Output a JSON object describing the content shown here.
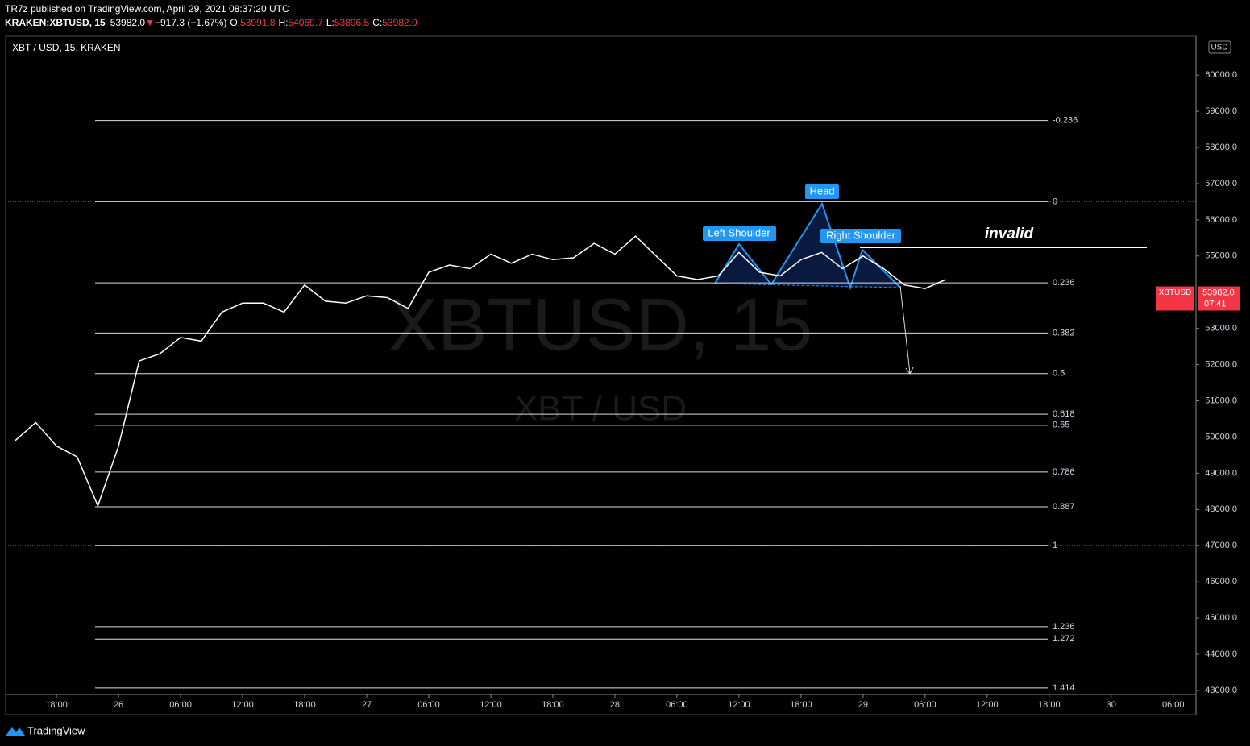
{
  "header": {
    "published": "TR7z published on TradingView.com, April 29, 2021 08:37:20 UTC",
    "symbol": "KRAKEN:XBTUSD, 15",
    "last": "53982.0",
    "arrow": "▼",
    "change": "−917.3 (−1.67%)",
    "ohlc": [
      {
        "label": "O:",
        "value": "53991.8"
      },
      {
        "label": "H:",
        "value": "54069.7"
      },
      {
        "label": "L:",
        "value": "53896.5"
      },
      {
        "label": "C:",
        "value": "53982.0"
      }
    ]
  },
  "chart_data": {
    "type": "line",
    "title": "XBT / USD, 15, KRAKEN",
    "watermark": "XBTUSD, 15",
    "watermark_sub": "XBT / USD",
    "currency": "USD",
    "brand": "TradingView",
    "x": [
      "2021-04-25T14:00",
      "2021-04-25T16:00",
      "2021-04-25T18:00",
      "2021-04-25T20:00",
      "2021-04-25T22:00",
      "2021-04-26T00:00",
      "2021-04-26T02:00",
      "2021-04-26T04:00",
      "2021-04-26T06:00",
      "2021-04-26T08:00",
      "2021-04-26T10:00",
      "2021-04-26T12:00",
      "2021-04-26T14:00",
      "2021-04-26T16:00",
      "2021-04-26T18:00",
      "2021-04-26T20:00",
      "2021-04-26T22:00",
      "2021-04-27T00:00",
      "2021-04-27T02:00",
      "2021-04-27T04:00",
      "2021-04-27T06:00",
      "2021-04-27T08:00",
      "2021-04-27T10:00",
      "2021-04-27T12:00",
      "2021-04-27T14:00",
      "2021-04-27T16:00",
      "2021-04-27T18:00",
      "2021-04-27T20:00",
      "2021-04-27T22:00",
      "2021-04-28T00:00",
      "2021-04-28T02:00",
      "2021-04-28T04:00",
      "2021-04-28T06:00",
      "2021-04-28T08:00",
      "2021-04-28T10:00",
      "2021-04-28T12:00",
      "2021-04-28T14:00",
      "2021-04-28T16:00",
      "2021-04-28T18:00",
      "2021-04-28T20:00",
      "2021-04-28T22:00",
      "2021-04-29T00:00",
      "2021-04-29T02:00",
      "2021-04-29T04:00",
      "2021-04-29T06:00",
      "2021-04-29T08:00"
    ],
    "series": [
      {
        "name": "XBTUSD",
        "color": "#ffffff",
        "values": [
          49900,
          50400,
          49750,
          49450,
          48100,
          49750,
          52100,
          52300,
          52750,
          52650,
          53450,
          53700,
          53700,
          53450,
          54200,
          53750,
          53700,
          53900,
          53850,
          53550,
          54550,
          54750,
          54650,
          55050,
          54800,
          55050,
          54900,
          54950,
          55350,
          55050,
          55550,
          55000,
          54450,
          54350,
          54450,
          55100,
          54550,
          54450,
          54900,
          55100,
          54650,
          55000,
          54650,
          54200,
          54100,
          54350
        ]
      }
    ],
    "last_price": {
      "value": 53982,
      "label": "53982.0",
      "symbol": "XBTUSD",
      "countdown": "07:41",
      "color": "#f23645"
    },
    "fib_levels": [
      {
        "label": -0.236,
        "price": 58742
      },
      {
        "label": 0,
        "price": 56500
      },
      {
        "label": 0.236,
        "price": 54258
      },
      {
        "label": 0.382,
        "price": 52871
      },
      {
        "label": 0.5,
        "price": 51750
      },
      {
        "label": 0.618,
        "price": 50629
      },
      {
        "label": 0.65,
        "price": 50325
      },
      {
        "label": 0.786,
        "price": 49033
      },
      {
        "label": 0.887,
        "price": 48073
      },
      {
        "label": 1,
        "price": 47000
      },
      {
        "label": 1.236,
        "price": 44758
      },
      {
        "label": 1.272,
        "price": 44416
      },
      {
        "label": 1.414,
        "price": 43067
      }
    ],
    "annotations": {
      "left_shoulder": "Left Shoulder",
      "head": "Head",
      "right_shoulder": "Right Shoulder",
      "invalid": "invalid"
    },
    "xlim": [
      "2021-04-25T13:05",
      "2021-04-30T08:12"
    ],
    "xticks": [
      {
        "value": "2021-04-25T18:00",
        "label": "18:00"
      },
      {
        "value": "2021-04-26T00:00",
        "label": "26"
      },
      {
        "value": "2021-04-26T06:00",
        "label": "06:00"
      },
      {
        "value": "2021-04-26T12:00",
        "label": "12:00"
      },
      {
        "value": "2021-04-26T18:00",
        "label": "18:00"
      },
      {
        "value": "2021-04-27T00:00",
        "label": "27"
      },
      {
        "value": "2021-04-27T06:00",
        "label": "06:00"
      },
      {
        "value": "2021-04-27T12:00",
        "label": "12:00"
      },
      {
        "value": "2021-04-27T18:00",
        "label": "18:00"
      },
      {
        "value": "2021-04-28T00:00",
        "label": "28"
      },
      {
        "value": "2021-04-28T06:00",
        "label": "06:00"
      },
      {
        "value": "2021-04-28T12:00",
        "label": "12:00"
      },
      {
        "value": "2021-04-28T18:00",
        "label": "18:00"
      },
      {
        "value": "2021-04-29T00:00",
        "label": "29"
      },
      {
        "value": "2021-04-29T06:00",
        "label": "06:00"
      },
      {
        "value": "2021-04-29T12:00",
        "label": "12:00"
      },
      {
        "value": "2021-04-29T18:00",
        "label": "18:00"
      },
      {
        "value": "2021-04-30T00:00",
        "label": "30"
      },
      {
        "value": "2021-04-30T06:00",
        "label": "06:00"
      }
    ],
    "ylim": [
      42330,
      61072
    ],
    "yticks": [
      {
        "value": 43000,
        "label": "43000.0"
      },
      {
        "value": 44000,
        "label": "44000.0"
      },
      {
        "value": 45000,
        "label": "45000.0"
      },
      {
        "value": 46000,
        "label": "46000.0"
      },
      {
        "value": 47000,
        "label": "47000.0"
      },
      {
        "value": 48000,
        "label": "48000.0"
      },
      {
        "value": 49000,
        "label": "49000.0"
      },
      {
        "value": 50000,
        "label": "50000.0"
      },
      {
        "value": 51000,
        "label": "51000.0"
      },
      {
        "value": 52000,
        "label": "52000.0"
      },
      {
        "value": 53000,
        "label": "53000.0"
      },
      {
        "value": 54000,
        "label": "54000.0"
      },
      {
        "value": 55000,
        "label": "55000.0"
      },
      {
        "value": 56000,
        "label": "56000.0"
      },
      {
        "value": 57000,
        "label": "57000.0"
      },
      {
        "value": 58000,
        "label": "58000.0"
      },
      {
        "value": 59000,
        "label": "59000.0"
      },
      {
        "value": 60000,
        "label": "60000.0"
      }
    ]
  }
}
